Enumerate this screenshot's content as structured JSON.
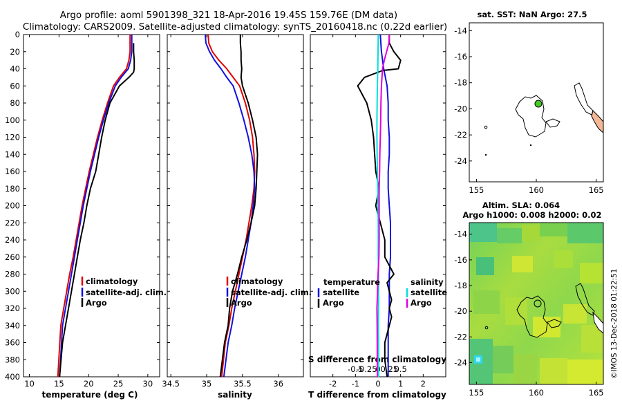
{
  "header": {
    "title_line1": "Argo profile: aoml 5901398_321 18-Apr-2016 19.45S 159.76E (DM data)",
    "title_line2": "Climatology: CARS2009. Satellite-adjusted climatology: synTS_20160418.nc (0.22d earlier)"
  },
  "watermark": "©IMOS 13-Dec-2018 01:22:51",
  "colors": {
    "climatology": "#e00000",
    "satellite": "#1010e0",
    "argo": "#000000",
    "sat_s": "#00e0e0",
    "argo_s": "#e000e0",
    "sst_land": "#f5b896"
  },
  "chart_data": [
    {
      "type": "line",
      "id": "temperature",
      "xlabel": "temperature (deg C)",
      "ylabel": "",
      "xlim": [
        9,
        32
      ],
      "ylim": [
        400,
        0
      ],
      "xticks": [
        "10",
        "15",
        "20",
        "25",
        "30"
      ],
      "xtick_values": [
        10,
        15,
        20,
        25,
        30
      ],
      "yticks": [
        "0",
        "20",
        "40",
        "60",
        "80",
        "100",
        "120",
        "140",
        "160",
        "180",
        "200",
        "220",
        "240",
        "260",
        "280",
        "300",
        "320",
        "340",
        "360",
        "380",
        "400"
      ],
      "ytick_values": [
        0,
        20,
        40,
        60,
        80,
        100,
        120,
        140,
        160,
        180,
        200,
        220,
        240,
        260,
        280,
        300,
        320,
        340,
        360,
        380,
        400
      ],
      "legend": [
        "climatology",
        "satellite-adj. clim.",
        "Argo"
      ],
      "legend_position": "lower-right",
      "series": [
        {
          "name": "climatology",
          "color": "#e00000",
          "x": [
            27.0,
            27.0,
            27.0,
            26.8,
            26.4,
            25.2,
            24.2,
            23.2,
            22.3,
            21.5,
            20.8,
            20.1,
            19.5,
            18.9,
            18.4,
            17.9,
            17.4,
            16.8,
            16.3,
            15.8,
            15.3,
            14.8
          ],
          "y": [
            0,
            10,
            20,
            30,
            40,
            50,
            60,
            80,
            100,
            120,
            140,
            160,
            180,
            200,
            220,
            240,
            260,
            280,
            300,
            320,
            340,
            400
          ]
        },
        {
          "name": "satellite-adj. clim.",
          "color": "#1010e0",
          "x": [
            27.3,
            27.3,
            27.3,
            27.1,
            26.7,
            25.5,
            24.5,
            23.4,
            22.5,
            21.7,
            21.0,
            20.3,
            19.7,
            19.1,
            18.6,
            18.1,
            17.6,
            17.1,
            16.6,
            16.1,
            15.6,
            15.1
          ],
          "y": [
            0,
            10,
            20,
            30,
            40,
            50,
            60,
            80,
            100,
            120,
            140,
            160,
            180,
            200,
            220,
            240,
            260,
            280,
            300,
            320,
            340,
            400
          ]
        },
        {
          "name": "Argo",
          "color": "#000000",
          "x": [
            27.6,
            27.6,
            27.7,
            27.7,
            27.6,
            26.8,
            25.2,
            23.6,
            22.8,
            22.2,
            21.7,
            21.2,
            20.3,
            19.7,
            19.2,
            18.6,
            18.1,
            17.6,
            17.1,
            16.6,
            16.1,
            15.6,
            15.1
          ],
          "y": [
            10,
            20,
            30,
            40,
            44,
            50,
            60,
            80,
            100,
            120,
            140,
            160,
            180,
            200,
            220,
            240,
            260,
            280,
            300,
            320,
            340,
            360,
            400
          ]
        }
      ]
    },
    {
      "type": "line",
      "id": "salinity",
      "xlabel": "salinity",
      "ylabel": "",
      "xlim": [
        34.45,
        36.35
      ],
      "ylim": [
        400,
        0
      ],
      "xticks": [
        "34.5",
        "35",
        "35.5",
        "36"
      ],
      "xtick_values": [
        34.5,
        35.0,
        35.5,
        36.0
      ],
      "legend": [
        "climatology",
        "satellite-adj. clim.",
        "Argo"
      ],
      "legend_position": "lower-right",
      "series": [
        {
          "name": "climatology",
          "color": "#e00000",
          "x": [
            35.02,
            35.03,
            35.08,
            35.17,
            35.28,
            35.37,
            35.46,
            35.54,
            35.6,
            35.64,
            35.66,
            35.67,
            35.66,
            35.63,
            35.59,
            35.55,
            35.5,
            35.45,
            35.4,
            35.35,
            35.31,
            35.26,
            35.21
          ],
          "y": [
            0,
            10,
            20,
            30,
            40,
            50,
            60,
            80,
            100,
            120,
            140,
            160,
            180,
            200,
            220,
            240,
            260,
            280,
            300,
            320,
            340,
            360,
            400
          ]
        },
        {
          "name": "satellite-adj. clim.",
          "color": "#1010e0",
          "x": [
            34.98,
            34.99,
            35.04,
            35.11,
            35.2,
            35.28,
            35.37,
            35.45,
            35.52,
            35.58,
            35.63,
            35.66,
            35.67,
            35.65,
            35.62,
            35.58,
            35.54,
            35.49,
            35.44,
            35.39,
            35.35,
            35.3,
            35.24
          ],
          "y": [
            0,
            10,
            20,
            30,
            40,
            50,
            60,
            80,
            100,
            120,
            140,
            160,
            180,
            200,
            220,
            240,
            260,
            280,
            300,
            320,
            340,
            360,
            400
          ]
        },
        {
          "name": "Argo",
          "color": "#000000",
          "x": [
            35.47,
            35.47,
            35.48,
            35.48,
            35.49,
            35.48,
            35.5,
            35.58,
            35.64,
            35.69,
            35.71,
            35.7,
            35.69,
            35.67,
            35.62,
            35.56,
            35.49,
            35.43,
            35.36,
            35.32,
            35.3,
            35.25,
            35.19
          ],
          "y": [
            0,
            10,
            20,
            30,
            40,
            50,
            60,
            80,
            100,
            120,
            140,
            160,
            180,
            200,
            220,
            240,
            260,
            280,
            300,
            320,
            340,
            360,
            400
          ]
        }
      ]
    },
    {
      "type": "line",
      "id": "differences",
      "xlabel": "T difference from climatology",
      "top_xlabel": "S difference from climatology",
      "xlim": [
        -3,
        3
      ],
      "ylim": [
        400,
        0
      ],
      "xticks": [
        "-2",
        "-1",
        "0",
        "1",
        "2"
      ],
      "xtick_values": [
        -2,
        -1,
        0,
        1,
        2
      ],
      "top_xticks": [
        "-0.5",
        "-0.25",
        "0",
        "0.25",
        "0.5"
      ],
      "legend_groups": [
        {
          "title": "temperature",
          "items": [
            "satellite",
            "Argo"
          ],
          "position": "left"
        },
        {
          "title": "salinity",
          "items": [
            "satellite",
            "Argo"
          ],
          "position": "right"
        }
      ],
      "series": [
        {
          "name": "T satellite",
          "color": "#1010e0",
          "x": [
            0.1,
            0.15,
            0.25,
            0.4,
            0.45,
            0.45,
            0.5,
            0.5,
            0.45,
            0.45,
            0.5,
            0.55,
            0.55,
            0.55,
            0.5,
            0.5,
            0.5,
            0.45,
            0.45,
            0.45,
            0.45
          ],
          "y": [
            0,
            20,
            40,
            60,
            80,
            100,
            120,
            140,
            160,
            180,
            200,
            220,
            240,
            260,
            280,
            300,
            320,
            340,
            360,
            380,
            400
          ]
        },
        {
          "name": "T Argo",
          "color": "#000000",
          "x": [
            0.5,
            0.5,
            0.7,
            1.0,
            0.9,
            0.2,
            -0.6,
            -0.9,
            -0.5,
            -0.3,
            -0.2,
            -0.15,
            -0.1,
            0.05,
            -0.1,
            0.1,
            0.3,
            0.3,
            0.5,
            0.7,
            0.4,
            0.5,
            0.6,
            0.5,
            0.6,
            0.5,
            0.4,
            0.3,
            0.3,
            0.3,
            0.4
          ],
          "y": [
            0,
            10,
            20,
            30,
            40,
            42,
            50,
            60,
            80,
            100,
            120,
            140,
            160,
            180,
            200,
            220,
            240,
            260,
            270,
            280,
            290,
            300,
            310,
            320,
            330,
            340,
            350,
            360,
            370,
            380,
            400
          ]
        },
        {
          "name": "S satellite",
          "color": "#00e0e0",
          "x": [
            0.01,
            0.0,
            -0.01,
            -0.03,
            -0.04,
            -0.05,
            -0.05,
            -0.04,
            -0.03,
            -0.01,
            0.0,
            0.01,
            0.01,
            0.01,
            0.02,
            0.02,
            0.02,
            0.01,
            0.02,
            0.02,
            0.02
          ],
          "y": [
            0,
            20,
            40,
            60,
            80,
            100,
            120,
            140,
            160,
            180,
            200,
            220,
            240,
            260,
            280,
            300,
            320,
            340,
            360,
            380,
            400
          ]
        },
        {
          "name": "S Argo",
          "color": "#e000e0",
          "x": [
            0.5,
            0.48,
            0.38,
            0.28,
            0.2,
            0.15,
            0.13,
            0.12,
            0.1,
            0.08,
            0.07,
            0.05,
            0.05,
            0.05,
            0.05,
            0.04,
            0.0,
            -0.02,
            -0.05,
            -0.04,
            -0.03
          ],
          "y": [
            0,
            10,
            20,
            30,
            40,
            60,
            80,
            100,
            120,
            140,
            160,
            180,
            200,
            220,
            240,
            260,
            280,
            300,
            320,
            340,
            400
          ]
        }
      ]
    },
    {
      "type": "map",
      "id": "sst-map",
      "title": "sat. SST: NaN Argo: 27.5",
      "xticks": [
        "155",
        "160",
        "165"
      ],
      "yticks": [
        "-14",
        "-16",
        "-18",
        "-20",
        "-22",
        "-24"
      ],
      "marker": {
        "lon": 159.76,
        "lat": -19.45
      }
    },
    {
      "type": "heatmap",
      "id": "sla-map",
      "title_line1": "Altim. SLA: 0.064",
      "title_line2": "Argo h1000: 0.008 h2000: 0.02",
      "xticks": [
        "155",
        "160",
        "165"
      ],
      "yticks": [
        "-14",
        "-16",
        "-18",
        "-20",
        "-22",
        "-24"
      ],
      "marker": {
        "lon": 159.76,
        "lat": -19.45
      }
    }
  ]
}
